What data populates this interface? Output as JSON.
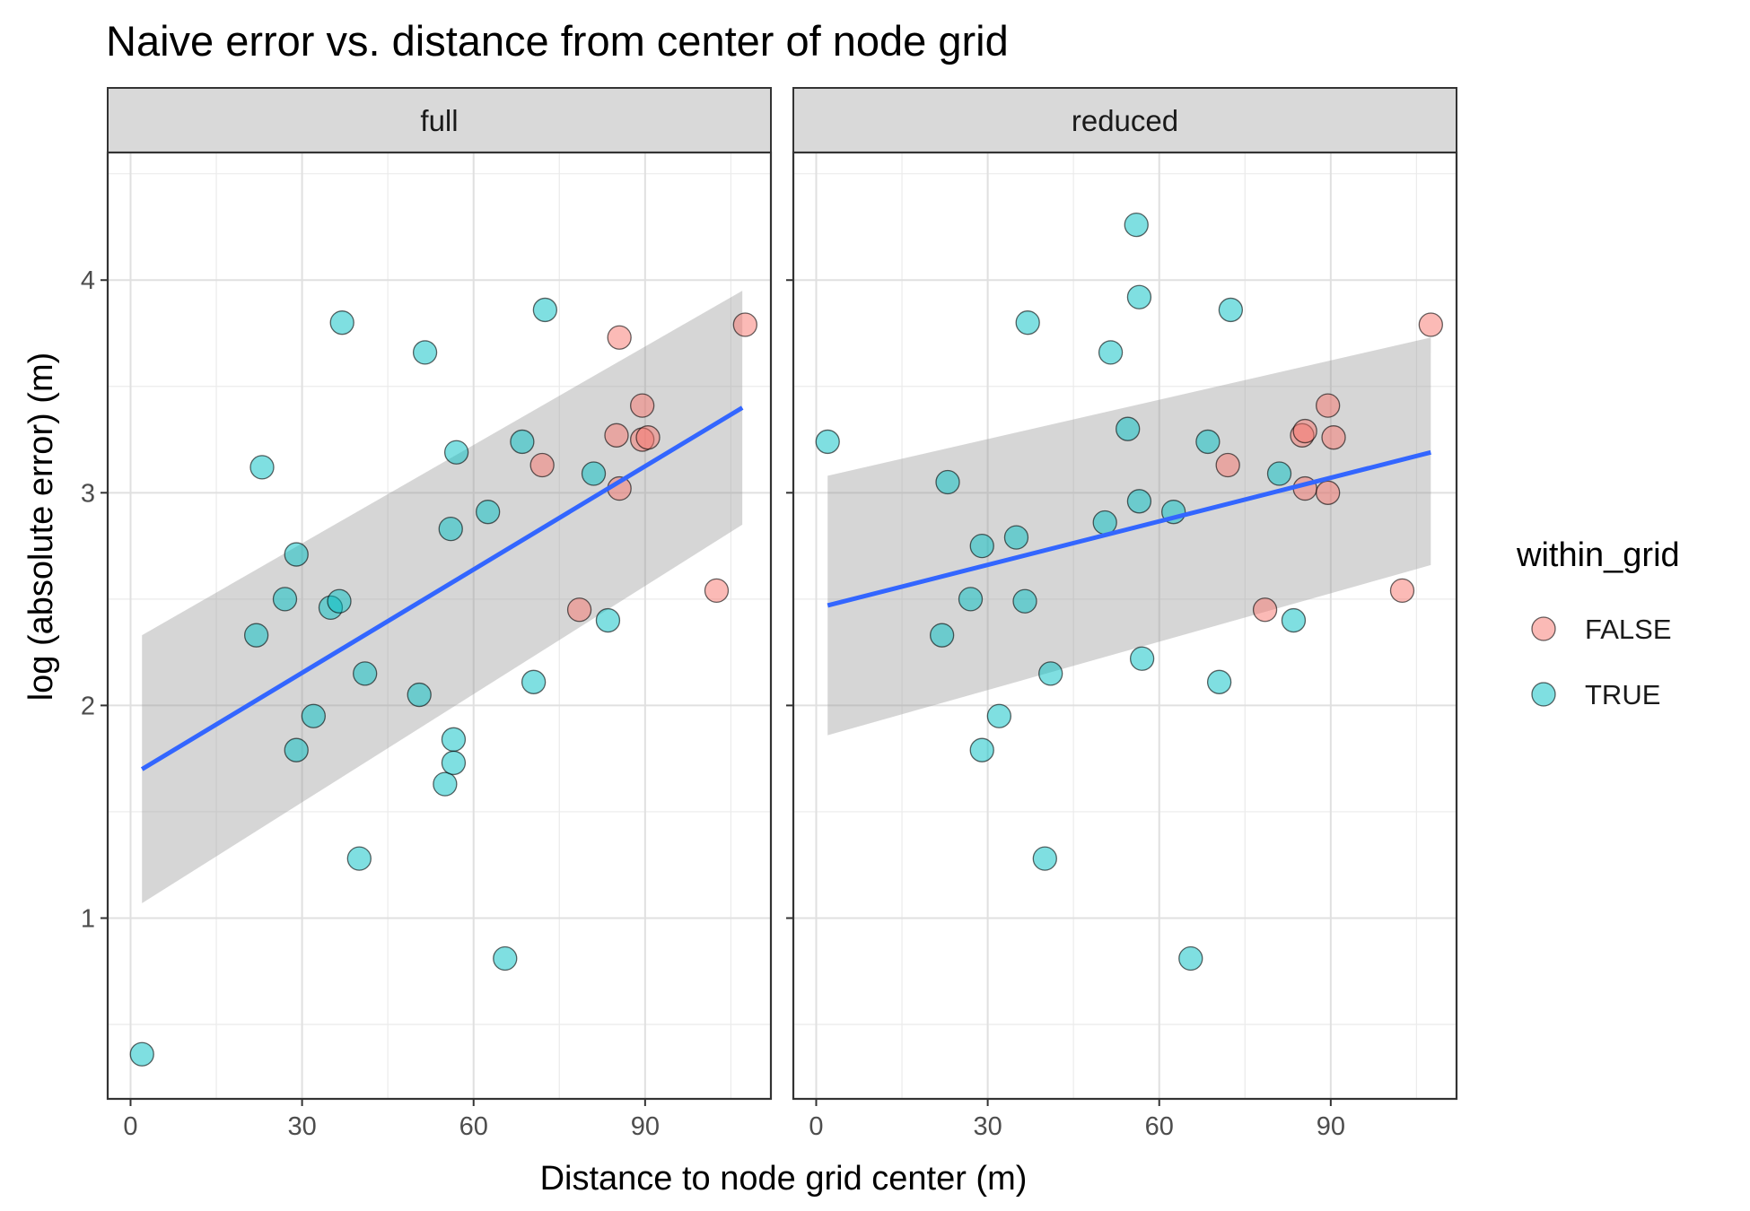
{
  "chart_data": {
    "type": "scatter",
    "title": "Naive error vs. distance from center of node grid",
    "xlabel": "Distance to node grid center (m)",
    "ylabel": "log (absolute error) (m)",
    "xlim": [
      -4,
      112
    ],
    "ylim": [
      0.15,
      4.6
    ],
    "x_ticks": [
      0,
      30,
      60,
      90
    ],
    "x_tick_labels": [
      "0",
      "30",
      "60",
      "90"
    ],
    "y_ticks": [
      1,
      2,
      3,
      4
    ],
    "y_tick_labels": [
      "1",
      "2",
      "3",
      "4"
    ],
    "grid": true,
    "legend": {
      "title": "within_grid",
      "position": "right",
      "entries": [
        {
          "label": "FALSE",
          "color": "#F8766D"
        },
        {
          "label": "TRUE",
          "color": "#00BFC4"
        }
      ]
    },
    "colors": {
      "FALSE": "#F8766D",
      "TRUE": "#00BFC4",
      "smooth_line": "#3366FF",
      "ribbon": "#999999",
      "strip_bg": "#D9D9D9"
    },
    "facets": [
      {
        "label": "full",
        "fit": {
          "x": [
            2,
            107
          ],
          "y": [
            1.7,
            3.4
          ],
          "ci_lower": [
            1.07,
            2.85
          ],
          "ci_upper": [
            2.33,
            3.95
          ]
        },
        "points": [
          {
            "x": 2,
            "y": 0.36,
            "within_grid": "TRUE"
          },
          {
            "x": 22,
            "y": 2.33,
            "within_grid": "TRUE"
          },
          {
            "x": 23,
            "y": 3.12,
            "within_grid": "TRUE"
          },
          {
            "x": 27,
            "y": 2.5,
            "within_grid": "TRUE"
          },
          {
            "x": 29,
            "y": 2.71,
            "within_grid": "TRUE"
          },
          {
            "x": 29,
            "y": 1.79,
            "within_grid": "TRUE"
          },
          {
            "x": 32,
            "y": 1.95,
            "within_grid": "TRUE"
          },
          {
            "x": 35,
            "y": 2.46,
            "within_grid": "TRUE"
          },
          {
            "x": 36.5,
            "y": 2.49,
            "within_grid": "TRUE"
          },
          {
            "x": 37,
            "y": 3.8,
            "within_grid": "TRUE"
          },
          {
            "x": 40,
            "y": 1.28,
            "within_grid": "TRUE"
          },
          {
            "x": 41,
            "y": 2.15,
            "within_grid": "TRUE"
          },
          {
            "x": 50.5,
            "y": 2.05,
            "within_grid": "TRUE"
          },
          {
            "x": 51.5,
            "y": 3.66,
            "within_grid": "TRUE"
          },
          {
            "x": 55,
            "y": 1.63,
            "within_grid": "TRUE"
          },
          {
            "x": 56,
            "y": 2.83,
            "within_grid": "TRUE"
          },
          {
            "x": 56.5,
            "y": 1.73,
            "within_grid": "TRUE"
          },
          {
            "x": 56.5,
            "y": 1.84,
            "within_grid": "TRUE"
          },
          {
            "x": 57,
            "y": 3.19,
            "within_grid": "TRUE"
          },
          {
            "x": 62.5,
            "y": 2.91,
            "within_grid": "TRUE"
          },
          {
            "x": 65.5,
            "y": 0.81,
            "within_grid": "TRUE"
          },
          {
            "x": 68.5,
            "y": 3.24,
            "within_grid": "TRUE"
          },
          {
            "x": 70.5,
            "y": 2.11,
            "within_grid": "TRUE"
          },
          {
            "x": 72,
            "y": 3.13,
            "within_grid": "FALSE"
          },
          {
            "x": 72.5,
            "y": 3.86,
            "within_grid": "TRUE"
          },
          {
            "x": 78.5,
            "y": 2.45,
            "within_grid": "FALSE"
          },
          {
            "x": 81,
            "y": 3.09,
            "within_grid": "TRUE"
          },
          {
            "x": 83.5,
            "y": 2.4,
            "within_grid": "TRUE"
          },
          {
            "x": 85,
            "y": 3.27,
            "within_grid": "FALSE"
          },
          {
            "x": 85.5,
            "y": 3.73,
            "within_grid": "FALSE"
          },
          {
            "x": 85.5,
            "y": 3.02,
            "within_grid": "FALSE"
          },
          {
            "x": 89.5,
            "y": 3.41,
            "within_grid": "FALSE"
          },
          {
            "x": 89.5,
            "y": 3.25,
            "within_grid": "FALSE"
          },
          {
            "x": 90.5,
            "y": 3.26,
            "within_grid": "FALSE"
          },
          {
            "x": 102.5,
            "y": 2.54,
            "within_grid": "FALSE"
          },
          {
            "x": 107.5,
            "y": 3.79,
            "within_grid": "FALSE"
          }
        ]
      },
      {
        "label": "reduced",
        "fit": {
          "x": [
            2,
            107.5
          ],
          "y": [
            2.47,
            3.19
          ],
          "ci_lower": [
            1.86,
            2.66
          ],
          "ci_upper": [
            3.08,
            3.73
          ]
        },
        "points": [
          {
            "x": 2,
            "y": 3.24,
            "within_grid": "TRUE"
          },
          {
            "x": 22,
            "y": 2.33,
            "within_grid": "TRUE"
          },
          {
            "x": 23,
            "y": 3.05,
            "within_grid": "TRUE"
          },
          {
            "x": 27,
            "y": 2.5,
            "within_grid": "TRUE"
          },
          {
            "x": 29,
            "y": 2.75,
            "within_grid": "TRUE"
          },
          {
            "x": 29,
            "y": 1.79,
            "within_grid": "TRUE"
          },
          {
            "x": 32,
            "y": 1.95,
            "within_grid": "TRUE"
          },
          {
            "x": 35,
            "y": 2.79,
            "within_grid": "TRUE"
          },
          {
            "x": 36.5,
            "y": 2.49,
            "within_grid": "TRUE"
          },
          {
            "x": 37,
            "y": 3.8,
            "within_grid": "TRUE"
          },
          {
            "x": 40,
            "y": 1.28,
            "within_grid": "TRUE"
          },
          {
            "x": 41,
            "y": 2.15,
            "within_grid": "TRUE"
          },
          {
            "x": 50.5,
            "y": 2.86,
            "within_grid": "TRUE"
          },
          {
            "x": 51.5,
            "y": 3.66,
            "within_grid": "TRUE"
          },
          {
            "x": 54.5,
            "y": 3.3,
            "within_grid": "TRUE"
          },
          {
            "x": 56,
            "y": 4.26,
            "within_grid": "TRUE"
          },
          {
            "x": 56.5,
            "y": 3.92,
            "within_grid": "TRUE"
          },
          {
            "x": 56.5,
            "y": 2.96,
            "within_grid": "TRUE"
          },
          {
            "x": 57,
            "y": 2.22,
            "within_grid": "TRUE"
          },
          {
            "x": 62.5,
            "y": 2.91,
            "within_grid": "TRUE"
          },
          {
            "x": 65.5,
            "y": 0.81,
            "within_grid": "TRUE"
          },
          {
            "x": 68.5,
            "y": 3.24,
            "within_grid": "TRUE"
          },
          {
            "x": 70.5,
            "y": 2.11,
            "within_grid": "TRUE"
          },
          {
            "x": 72,
            "y": 3.13,
            "within_grid": "FALSE"
          },
          {
            "x": 72.5,
            "y": 3.86,
            "within_grid": "TRUE"
          },
          {
            "x": 78.5,
            "y": 2.45,
            "within_grid": "FALSE"
          },
          {
            "x": 81,
            "y": 3.09,
            "within_grid": "TRUE"
          },
          {
            "x": 83.5,
            "y": 2.4,
            "within_grid": "TRUE"
          },
          {
            "x": 85,
            "y": 3.27,
            "within_grid": "FALSE"
          },
          {
            "x": 85.5,
            "y": 3.29,
            "within_grid": "FALSE"
          },
          {
            "x": 85.5,
            "y": 3.02,
            "within_grid": "FALSE"
          },
          {
            "x": 89.5,
            "y": 3.41,
            "within_grid": "FALSE"
          },
          {
            "x": 89.5,
            "y": 3.0,
            "within_grid": "FALSE"
          },
          {
            "x": 90.5,
            "y": 3.26,
            "within_grid": "FALSE"
          },
          {
            "x": 102.5,
            "y": 2.54,
            "within_grid": "FALSE"
          },
          {
            "x": 107.5,
            "y": 3.79,
            "within_grid": "FALSE"
          }
        ]
      }
    ]
  }
}
